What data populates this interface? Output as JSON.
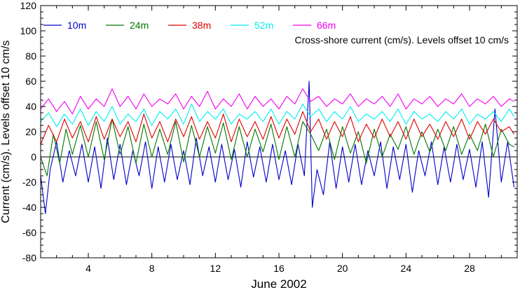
{
  "chart_data": {
    "type": "line",
    "title": "",
    "annotation": "Cross-shore current (cm/s). Levels offset 10 cm/s",
    "xlabel": "June 2002",
    "ylabel": "Current (cm/s). Levels offset 10 cm/s",
    "xlim": [
      1,
      31
    ],
    "ylim": [
      -80,
      120
    ],
    "xticks": [
      4,
      8,
      12,
      16,
      20,
      24,
      28
    ],
    "xtick_labels": [
      "4",
      "8",
      "12",
      "16",
      "20",
      "24",
      "28"
    ],
    "yticks": [
      -80,
      -60,
      -40,
      -20,
      0,
      20,
      40,
      60,
      80,
      100,
      120
    ],
    "ytick_labels": [
      "-80",
      "-60",
      "-40",
      "-20",
      "0",
      "20",
      "40",
      "60",
      "80",
      "100",
      "120"
    ],
    "zero_line": true,
    "grid": false,
    "legend_position": "top-left",
    "series": [
      {
        "name": "10m",
        "color": "#0000cc",
        "x": [
          1.0,
          1.3,
          1.6,
          2.0,
          2.4,
          2.8,
          3.2,
          3.6,
          4.0,
          4.4,
          4.8,
          5.2,
          5.6,
          6.0,
          6.4,
          6.8,
          7.2,
          7.6,
          8.0,
          8.4,
          8.8,
          9.2,
          9.6,
          10.0,
          10.4,
          10.8,
          11.2,
          11.6,
          12.0,
          12.4,
          12.8,
          13.2,
          13.6,
          14.0,
          14.4,
          14.8,
          15.2,
          15.6,
          16.0,
          16.4,
          16.8,
          17.2,
          17.6,
          17.9,
          18.1,
          18.4,
          18.8,
          19.2,
          19.6,
          20.0,
          20.4,
          20.8,
          21.2,
          21.6,
          22.0,
          22.4,
          22.8,
          23.2,
          23.6,
          24.0,
          24.4,
          24.8,
          25.2,
          25.6,
          26.0,
          26.4,
          26.8,
          27.2,
          27.6,
          28.0,
          28.4,
          28.8,
          29.2,
          29.6,
          30.0,
          30.4,
          30.8
        ],
        "values": [
          -15,
          -45,
          -10,
          12,
          -20,
          5,
          -15,
          10,
          -20,
          8,
          -25,
          15,
          -18,
          10,
          -22,
          5,
          -15,
          12,
          -25,
          8,
          -20,
          10,
          -18,
          5,
          -22,
          15,
          -15,
          8,
          -20,
          10,
          -18,
          6,
          -24,
          12,
          -16,
          8,
          -20,
          10,
          -18,
          5,
          -22,
          10,
          -15,
          60,
          -40,
          -10,
          -30,
          12,
          -25,
          8,
          -20,
          10,
          -22,
          5,
          -15,
          12,
          -25,
          8,
          -18,
          10,
          -28,
          5,
          -15,
          12,
          -22,
          8,
          -20,
          10,
          -18,
          6,
          -24,
          12,
          -32,
          38,
          -20,
          12,
          -24
        ]
      },
      {
        "name": "24m",
        "color": "#007700",
        "x": [
          1.0,
          1.4,
          1.8,
          2.2,
          2.6,
          3.0,
          3.5,
          4.0,
          4.5,
          5.0,
          5.5,
          6.0,
          6.5,
          7.0,
          7.5,
          8.0,
          8.5,
          9.0,
          9.5,
          10.0,
          10.5,
          11.0,
          11.5,
          12.0,
          12.5,
          13.0,
          13.5,
          14.0,
          14.5,
          15.0,
          15.5,
          16.0,
          16.5,
          17.0,
          17.5,
          18.0,
          18.5,
          19.0,
          19.5,
          20.0,
          20.5,
          21.0,
          21.5,
          22.0,
          22.5,
          23.0,
          23.5,
          24.0,
          24.5,
          25.0,
          25.5,
          26.0,
          26.5,
          27.0,
          27.5,
          28.0,
          28.5,
          29.0,
          29.5,
          30.0,
          30.5,
          30.8
        ],
        "values": [
          0,
          -15,
          18,
          -5,
          22,
          2,
          25,
          0,
          28,
          -2,
          30,
          2,
          24,
          -5,
          26,
          0,
          22,
          2,
          28,
          -4,
          25,
          0,
          24,
          3,
          27,
          -2,
          24,
          0,
          22,
          4,
          26,
          -2,
          24,
          0,
          28,
          18,
          5,
          22,
          -2,
          24,
          3,
          20,
          -5,
          22,
          0,
          18,
          6,
          24,
          2,
          20,
          4,
          22,
          5,
          24,
          2,
          18,
          5,
          26,
          0,
          22,
          10,
          8
        ]
      },
      {
        "name": "38m",
        "color": "#dd0000",
        "x": [
          1.0,
          1.5,
          2.0,
          2.5,
          3.0,
          3.5,
          4.0,
          4.5,
          5.0,
          5.5,
          6.0,
          6.5,
          7.0,
          7.5,
          8.0,
          8.5,
          9.0,
          9.5,
          10.0,
          10.5,
          11.0,
          11.5,
          12.0,
          12.5,
          13.0,
          13.5,
          14.0,
          14.5,
          15.0,
          15.5,
          16.0,
          16.5,
          17.0,
          17.5,
          18.0,
          18.5,
          19.0,
          19.5,
          20.0,
          20.5,
          21.0,
          21.5,
          22.0,
          22.5,
          23.0,
          23.5,
          24.0,
          24.5,
          25.0,
          25.5,
          26.0,
          26.5,
          27.0,
          27.5,
          28.0,
          28.5,
          29.0,
          29.5,
          30.0,
          30.5,
          30.8
        ],
        "values": [
          10,
          25,
          12,
          30,
          15,
          28,
          12,
          32,
          14,
          30,
          16,
          28,
          12,
          34,
          15,
          28,
          12,
          30,
          16,
          32,
          14,
          28,
          15,
          34,
          12,
          30,
          16,
          28,
          14,
          32,
          15,
          30,
          18,
          36,
          20,
          30,
          14,
          28,
          16,
          32,
          12,
          26,
          15,
          30,
          16,
          28,
          14,
          30,
          16,
          26,
          14,
          28,
          16,
          30,
          14,
          28,
          18,
          30,
          20,
          24,
          18
        ]
      },
      {
        "name": "52m",
        "color": "#00eeee",
        "x": [
          1.0,
          1.5,
          2.0,
          2.5,
          3.0,
          3.5,
          4.0,
          4.5,
          5.0,
          5.5,
          6.0,
          6.5,
          7.0,
          7.5,
          8.0,
          8.5,
          9.0,
          9.5,
          10.0,
          10.5,
          11.0,
          11.5,
          12.0,
          12.5,
          13.0,
          13.5,
          14.0,
          14.5,
          15.0,
          15.5,
          16.0,
          16.5,
          17.0,
          17.5,
          18.0,
          18.5,
          19.0,
          19.5,
          20.0,
          20.5,
          21.0,
          21.5,
          22.0,
          22.5,
          23.0,
          23.5,
          24.0,
          24.5,
          25.0,
          25.5,
          26.0,
          26.5,
          27.0,
          27.5,
          28.0,
          28.5,
          29.0,
          29.5,
          30.0,
          30.5,
          30.8
        ],
        "values": [
          28,
          35,
          24,
          34,
          26,
          38,
          25,
          36,
          28,
          40,
          26,
          34,
          28,
          38,
          25,
          36,
          30,
          38,
          26,
          42,
          28,
          36,
          30,
          38,
          26,
          34,
          30,
          36,
          28,
          38,
          26,
          36,
          30,
          42,
          32,
          38,
          28,
          36,
          30,
          40,
          28,
          34,
          30,
          36,
          28,
          38,
          26,
          36,
          30,
          34,
          28,
          36,
          30,
          38,
          26,
          34,
          30,
          36,
          28,
          38,
          32
        ]
      },
      {
        "name": "66m",
        "color": "#ee00ee",
        "x": [
          1.0,
          1.5,
          2.0,
          2.5,
          3.0,
          3.5,
          4.0,
          4.5,
          5.0,
          5.5,
          6.0,
          6.5,
          7.0,
          7.5,
          8.0,
          8.5,
          9.0,
          9.5,
          10.0,
          10.5,
          11.0,
          11.5,
          12.0,
          12.5,
          13.0,
          13.5,
          14.0,
          14.5,
          15.0,
          15.5,
          16.0,
          16.5,
          17.0,
          17.5,
          18.0,
          18.5,
          19.0,
          19.5,
          20.0,
          20.5,
          21.0,
          21.5,
          22.0,
          22.5,
          23.0,
          23.5,
          24.0,
          24.5,
          25.0,
          25.5,
          26.0,
          26.5,
          27.0,
          27.5,
          28.0,
          28.5,
          29.0,
          29.5,
          30.0,
          30.5,
          30.8
        ],
        "values": [
          38,
          46,
          36,
          44,
          34,
          48,
          38,
          46,
          40,
          54,
          40,
          48,
          38,
          50,
          40,
          46,
          42,
          50,
          38,
          48,
          40,
          52,
          38,
          46,
          40,
          50,
          38,
          48,
          40,
          46,
          38,
          48,
          42,
          54,
          44,
          48,
          40,
          46,
          42,
          50,
          40,
          46,
          42,
          48,
          40,
          50,
          38,
          46,
          42,
          48,
          40,
          46,
          42,
          50,
          40,
          46,
          42,
          48,
          40,
          46,
          44
        ]
      }
    ]
  }
}
